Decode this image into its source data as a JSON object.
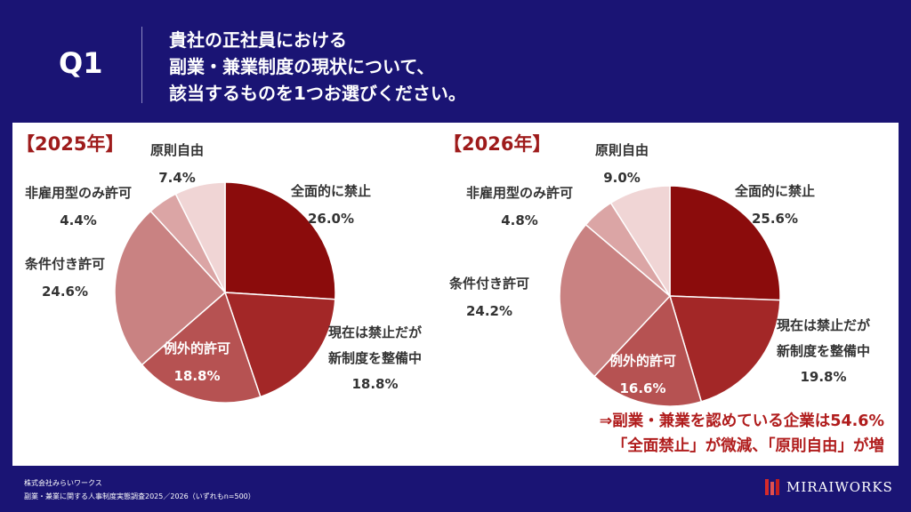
{
  "header": {
    "q_label": "Q1",
    "question_lines": [
      "貴社の正社員における",
      "副業・兼業制度の現状について、",
      "該当するものを1つお選びください。"
    ]
  },
  "colors": {
    "background": "#1a1474",
    "accent": "#9e1b1b",
    "slices": [
      "#8b0c0c",
      "#a32727",
      "#b65252",
      "#c98282",
      "#dba5a5",
      "#f0d5d5"
    ]
  },
  "chart_data": [
    {
      "type": "pie",
      "title": "【2025年】",
      "categories": [
        "全面的に禁止",
        "現在は禁止だが新制度を整備中",
        "例外的許可",
        "条件付き許可",
        "非雇用型のみ許可",
        "原則自由"
      ],
      "values": [
        26.0,
        18.8,
        18.8,
        24.6,
        4.4,
        7.4
      ],
      "labels": [
        {
          "name_lines": [
            "全面的に禁止"
          ],
          "value": "26.0%"
        },
        {
          "name_lines": [
            "現在は禁止だが",
            "新制度を整備中"
          ],
          "value": "18.8%"
        },
        {
          "name_lines": [
            "例外的許可"
          ],
          "value": "18.8%"
        },
        {
          "name_lines": [
            "条件付き許可"
          ],
          "value": "24.6%"
        },
        {
          "name_lines": [
            "非雇用型のみ許可"
          ],
          "value": "4.4%"
        },
        {
          "name_lines": [
            "原則自由"
          ],
          "value": "7.4%"
        }
      ]
    },
    {
      "type": "pie",
      "title": "【2026年】",
      "categories": [
        "全面的に禁止",
        "現在は禁止だが新制度を整備中",
        "例外的許可",
        "条件付き許可",
        "非雇用型のみ許可",
        "原則自由"
      ],
      "values": [
        25.6,
        19.8,
        16.6,
        24.2,
        4.8,
        9.0
      ],
      "labels": [
        {
          "name_lines": [
            "全面的に禁止"
          ],
          "value": "25.6%"
        },
        {
          "name_lines": [
            "現在は禁止だが",
            "新制度を整備中"
          ],
          "value": "19.8%"
        },
        {
          "name_lines": [
            "例外的許可"
          ],
          "value": "16.6%"
        },
        {
          "name_lines": [
            "条件付き許可"
          ],
          "value": "24.2%"
        },
        {
          "name_lines": [
            "非雇用型のみ許可"
          ],
          "value": "4.8%"
        },
        {
          "name_lines": [
            "原則自由"
          ],
          "value": "9.0%"
        }
      ]
    }
  ],
  "conclusion": {
    "line1": "⇒副業・兼業を認めている企業は54.6%",
    "line2": "「全面禁止」が微減、「原則自由」が増"
  },
  "footer": {
    "company": "株式会社みらいワークス",
    "source": "副業・兼業に関する人事制度実態調査2025／2026（いずれもn=500）",
    "logo_text": "MIRAIWORKS"
  }
}
